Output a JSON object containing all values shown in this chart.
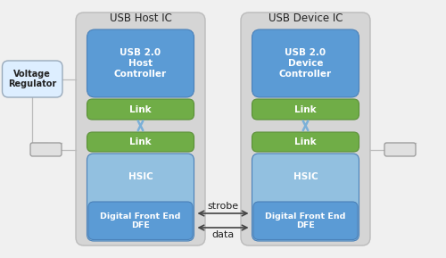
{
  "fig_bg": "#f0f0f0",
  "panel_bg": "#d5d5d5",
  "panel_edge": "#bbbbbb",
  "blue_controller": "#5b9bd5",
  "blue_hsic": "#92c0e0",
  "blue_dfe": "#5b9bd5",
  "green_link": "#70ad47",
  "green_edge": "#5a8f38",
  "blue_edge": "#4a80b8",
  "white": "#ffffff",
  "connector_bg": "#e0e0e0",
  "connector_edge": "#999999",
  "volt_bg": "#ddeeff",
  "volt_edge": "#99aabb",
  "arrow_blue": "#7ab0d8",
  "arrow_black": "#444444",
  "text_dark": "#222222",
  "text_white": "#ffffff",
  "host_title": "USB Host IC",
  "device_title": "USB Device IC",
  "voltage_label": "Voltage\nRegulator",
  "host_ctrl_label": "USB 2.0\nHost\nController",
  "device_ctrl_label": "USB 2.0\nDevice\nController",
  "link_label": "Link",
  "hsic_label": "HSIC",
  "dfe_label": "Digital Front End\nDFE",
  "strobe_label": "strobe",
  "data_label": "data",
  "xlim": [
    0,
    10
  ],
  "ylim": [
    0,
    5.78
  ]
}
